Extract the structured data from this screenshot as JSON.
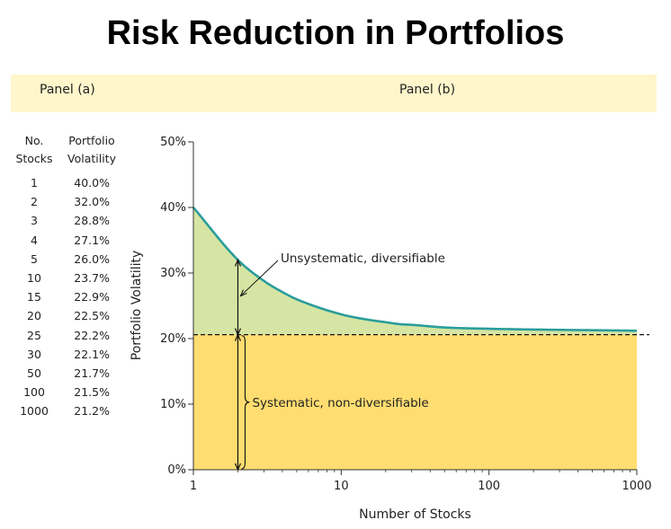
{
  "page_title": "Risk Reduction in Portfolios",
  "panels": {
    "a_label": "Panel (a)",
    "b_label": "Panel (b)"
  },
  "table": {
    "header_col1": [
      "No.",
      "Stocks"
    ],
    "header_col2": [
      "Portfolio",
      "Volatility"
    ],
    "rows": [
      {
        "stocks": "1",
        "vol": "40.0%"
      },
      {
        "stocks": "2",
        "vol": "32.0%"
      },
      {
        "stocks": "3",
        "vol": "28.8%"
      },
      {
        "stocks": "4",
        "vol": "27.1%"
      },
      {
        "stocks": "5",
        "vol": "26.0%"
      },
      {
        "stocks": "10",
        "vol": "23.7%"
      },
      {
        "stocks": "15",
        "vol": "22.9%"
      },
      {
        "stocks": "20",
        "vol": "22.5%"
      },
      {
        "stocks": "25",
        "vol": "22.2%"
      },
      {
        "stocks": "30",
        "vol": "22.1%"
      },
      {
        "stocks": "50",
        "vol": "21.7%"
      },
      {
        "stocks": "100",
        "vol": "21.5%"
      },
      {
        "stocks": "1000",
        "vol": "21.2%"
      }
    ]
  },
  "chart_data": {
    "type": "area",
    "xlabel": "Number of Stocks",
    "ylabel": "Portfolio Volatility",
    "x_scale": "log",
    "xlim": [
      1,
      1000
    ],
    "ylim": [
      0,
      50
    ],
    "x_ticks": [
      1,
      10,
      100,
      1000
    ],
    "x_tick_labels": [
      "1",
      "10",
      "100",
      "1000"
    ],
    "y_ticks": [
      0,
      10,
      20,
      30,
      40,
      50
    ],
    "y_tick_labels": [
      "0%",
      "10%",
      "20%",
      "30%",
      "40%",
      "50%"
    ],
    "grid": false,
    "series": [
      {
        "x": [
          1,
          2,
          3,
          4,
          5,
          10,
          15,
          20,
          25,
          30,
          50,
          100,
          1000
        ],
        "values": [
          40.0,
          32.0,
          28.8,
          27.1,
          26.0,
          23.7,
          22.9,
          22.5,
          22.2,
          22.1,
          21.7,
          21.5,
          21.2
        ]
      }
    ],
    "systematic_level": 20.6,
    "annotations": {
      "unsystematic": "Unsystematic, diversifiable",
      "systematic": "Systematic, non-diversifiable"
    },
    "colors": {
      "curve": "#2a9d9b",
      "unsystematic_fill": "#d6e5a3",
      "systematic_fill": "#ffdd70",
      "panel_bar": "#fff6cc"
    }
  }
}
